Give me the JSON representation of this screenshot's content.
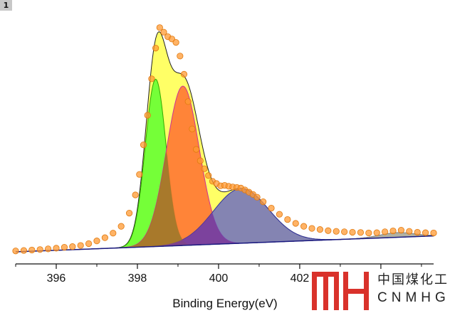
{
  "panel": {
    "badge": "1"
  },
  "logo": {
    "cn": "中国煤化工",
    "en": "CNMHG"
  },
  "chart_data": {
    "type": "area",
    "title": "",
    "xlabel": "Binding Energy(eV)",
    "ylabel": "",
    "xlim": [
      395.0,
      405.3
    ],
    "ylim": [
      0,
      1.0
    ],
    "xticks": [
      396,
      398,
      400,
      402,
      404
    ],
    "xtick_labels": [
      "396",
      "398",
      "400",
      "402",
      ""
    ],
    "grid": false,
    "background": {
      "start": 0.0,
      "end": 0.07
    },
    "peaks": [
      {
        "center": 398.45,
        "height": 0.735,
        "fwhm": 0.6,
        "color": "#66ff33",
        "edge": "#33aa00"
      },
      {
        "center": 399.12,
        "height": 0.7,
        "fwhm": 0.95,
        "color": "#ff7733",
        "edge": "#cc3399"
      },
      {
        "center": 400.55,
        "height": 0.24,
        "fwhm": 1.6,
        "color": "#6f6fbf",
        "edge": "#333399"
      },
      {
        "center": 404.4,
        "height": 0.02,
        "fwhm": 1.0,
        "color": "#aaaaaa",
        "edge": "#888888"
      }
    ],
    "envelope_color": "#ffff66",
    "points_color": "#ff9933",
    "overlap_color": "#a0782a",
    "points": [
      [
        395.0,
        0.004
      ],
      [
        395.2,
        0.006
      ],
      [
        395.4,
        0.008
      ],
      [
        395.6,
        0.01
      ],
      [
        395.8,
        0.013
      ],
      [
        396.0,
        0.016
      ],
      [
        396.2,
        0.02
      ],
      [
        396.4,
        0.023
      ],
      [
        396.6,
        0.028
      ],
      [
        396.8,
        0.036
      ],
      [
        397.0,
        0.048
      ],
      [
        397.2,
        0.062
      ],
      [
        397.4,
        0.082
      ],
      [
        397.6,
        0.112
      ],
      [
        397.8,
        0.17
      ],
      [
        397.95,
        0.25
      ],
      [
        398.05,
        0.34
      ],
      [
        398.15,
        0.47
      ],
      [
        398.25,
        0.6
      ],
      [
        398.35,
        0.76
      ],
      [
        398.45,
        0.895
      ],
      [
        398.55,
        0.985
      ],
      [
        398.65,
        0.965
      ],
      [
        398.75,
        0.945
      ],
      [
        398.85,
        0.935
      ],
      [
        398.95,
        0.92
      ],
      [
        399.05,
        0.86
      ],
      [
        399.15,
        0.78
      ],
      [
        399.25,
        0.66
      ],
      [
        399.35,
        0.54
      ],
      [
        399.45,
        0.45
      ],
      [
        399.55,
        0.4
      ],
      [
        399.65,
        0.365
      ],
      [
        399.75,
        0.335
      ],
      [
        399.85,
        0.31
      ],
      [
        399.95,
        0.3
      ],
      [
        400.05,
        0.29
      ],
      [
        400.15,
        0.292
      ],
      [
        400.25,
        0.288
      ],
      [
        400.35,
        0.285
      ],
      [
        400.45,
        0.283
      ],
      [
        400.55,
        0.28
      ],
      [
        400.65,
        0.272
      ],
      [
        400.75,
        0.262
      ],
      [
        400.85,
        0.252
      ],
      [
        400.95,
        0.24
      ],
      [
        401.1,
        0.22
      ],
      [
        401.3,
        0.192
      ],
      [
        401.5,
        0.165
      ],
      [
        401.7,
        0.142
      ],
      [
        401.9,
        0.125
      ],
      [
        402.1,
        0.112
      ],
      [
        402.3,
        0.103
      ],
      [
        402.5,
        0.098
      ],
      [
        402.7,
        0.093
      ],
      [
        402.9,
        0.09
      ],
      [
        403.1,
        0.088
      ],
      [
        403.3,
        0.086
      ],
      [
        403.5,
        0.085
      ],
      [
        403.7,
        0.083
      ],
      [
        403.9,
        0.084
      ],
      [
        404.1,
        0.088
      ],
      [
        404.3,
        0.092
      ],
      [
        404.5,
        0.095
      ],
      [
        404.7,
        0.09
      ],
      [
        404.9,
        0.086
      ],
      [
        405.1,
        0.084
      ],
      [
        405.3,
        0.083
      ]
    ]
  }
}
